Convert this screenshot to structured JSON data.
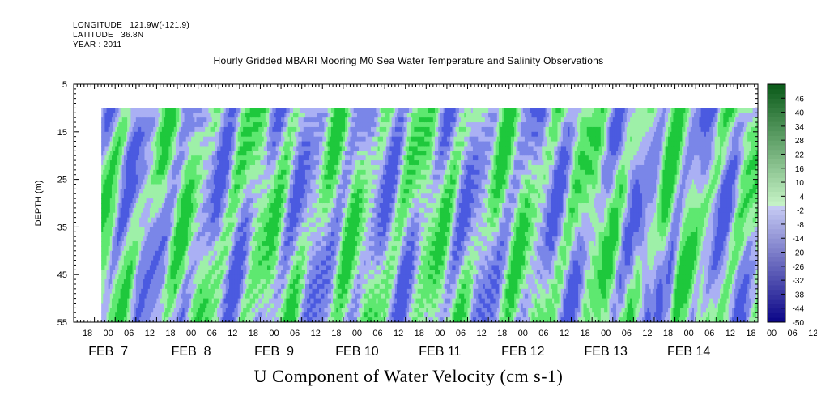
{
  "header": {
    "longitude": "LONGITUDE : 121.9W(-121.9)",
    "latitude": "LATITUDE : 36.8N",
    "year": "YEAR : 2011"
  },
  "chart_data": {
    "type": "heatmap",
    "title": "Hourly Gridded MBARI Mooring M0 Sea Water Temperature and Salinity Observations",
    "xlabel": "U Component of Water Velocity (cm s-1)",
    "ylabel": "DEPTH (m)",
    "ylim": [
      55,
      5
    ],
    "xlim_hours": [
      0,
      198
    ],
    "y_ticks": [
      "5",
      "15",
      "25",
      "35",
      "45",
      "55"
    ],
    "x_hour_ticks": [
      "18",
      "00",
      "06",
      "12",
      "18",
      "00",
      "06",
      "12",
      "18",
      "00",
      "06",
      "12",
      "18",
      "00",
      "06",
      "12",
      "18",
      "00",
      "06",
      "12",
      "18",
      "00",
      "06",
      "12",
      "18",
      "00",
      "06",
      "12",
      "18",
      "00",
      "06",
      "12",
      "18",
      "00",
      "06",
      "12"
    ],
    "x_date_labels": [
      "FEB  7",
      "FEB  8",
      "FEB  9",
      "FEB 10",
      "FEB 11",
      "FEB 12",
      "FEB 13",
      "FEB 14"
    ],
    "colorbar_labels": [
      "46",
      "40",
      "34",
      "28",
      "22",
      "16",
      "10",
      "4",
      "-2",
      "-8",
      "-14",
      "-20",
      "-26",
      "-32",
      "-38",
      "-44",
      "-50"
    ],
    "colorbar_range": [
      -50,
      52
    ],
    "data_depth_range": [
      10,
      55
    ],
    "data_start_hour": 8,
    "colors": {
      "negative_light": "#aab0f4",
      "negative_mid": "#7a86e8",
      "negative_strong": "#4b5ae0",
      "positive_light": "#9ef0a8",
      "positive_mid": "#5ee870",
      "positive_strong": "#1ec83c"
    }
  }
}
